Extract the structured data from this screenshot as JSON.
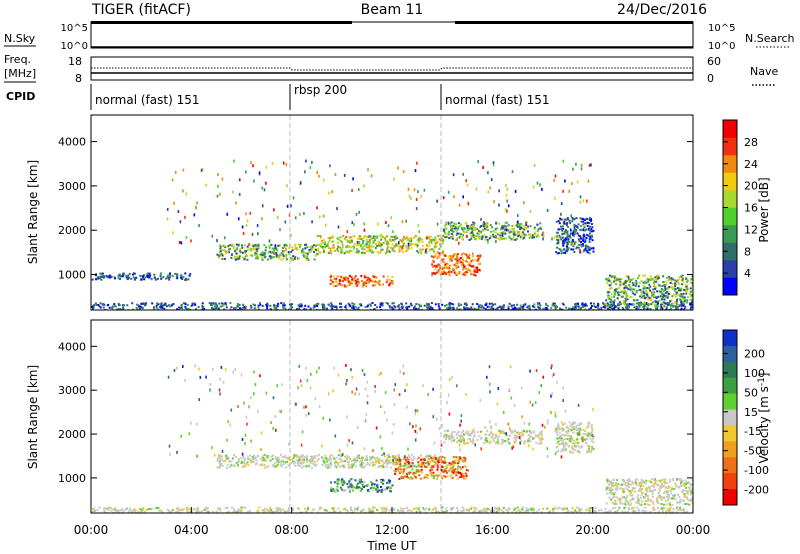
{
  "header": {
    "radar": "TIGER (fitACF)",
    "beam": "Beam 11",
    "date": "24/Dec/2016"
  },
  "status_panels": {
    "nsky_label": "N.Sky",
    "nsearch_label": "N.Search",
    "nsky_ticks": [
      "10^5",
      "10^0"
    ],
    "nsearch_ticks": [
      "10^5",
      "10^0"
    ],
    "freq_label_1": "Freq.",
    "freq_label_2": "[MHz]",
    "freq_ticks": [
      "18",
      "8"
    ],
    "nave_label": "Nave",
    "nave_ticks": [
      "60",
      "0"
    ],
    "cpid_label": "CPID",
    "cpid_segments": [
      {
        "label": "normal (fast) 151",
        "start_h": 0,
        "end_h": 8
      },
      {
        "label": "rbsp 200",
        "start_h": 8,
        "end_h": 14
      },
      {
        "label": "normal (fast) 151",
        "start_h": 14,
        "end_h": 24
      }
    ]
  },
  "chart_data": [
    {
      "type": "heatmap",
      "panel": "power",
      "ylabel": "Slant Range [km]",
      "yticks": [
        "1000",
        "2000",
        "3000",
        "4000"
      ],
      "ylim": [
        200,
        4600
      ],
      "xlim": [
        0,
        24
      ],
      "colorbar_label": "Power [dB]",
      "colorbar_ticks": [
        "4",
        "8",
        "12",
        "16",
        "20",
        "24",
        "28"
      ],
      "colorbar_colors": [
        "#0000ff",
        "#2a3fa8",
        "#2f6f66",
        "#3a9a55",
        "#4fd02c",
        "#a8d832",
        "#f0cc10",
        "#f08a10",
        "#f03010",
        "#f00000"
      ],
      "features": [
        {
          "t": [
            0,
            24
          ],
          "r": [
            200,
            380
          ],
          "level": "low"
        },
        {
          "t": [
            0,
            4
          ],
          "r": [
            900,
            1050
          ],
          "level": "low"
        },
        {
          "t": [
            5,
            9
          ],
          "r": [
            1350,
            1700
          ],
          "level": "medium"
        },
        {
          "t": [
            9,
            14
          ],
          "r": [
            1500,
            1900
          ],
          "level": "high"
        },
        {
          "t": [
            9.5,
            12
          ],
          "r": [
            750,
            1000
          ],
          "level": "very-high"
        },
        {
          "t": [
            13.5,
            15.5
          ],
          "r": [
            1000,
            1500
          ],
          "level": "very-high"
        },
        {
          "t": [
            14,
            18
          ],
          "r": [
            1800,
            2200
          ],
          "level": "medium"
        },
        {
          "t": [
            18.5,
            20
          ],
          "r": [
            1500,
            2300
          ],
          "level": "low"
        },
        {
          "t": [
            20.5,
            24
          ],
          "r": [
            300,
            1000
          ],
          "level": "medium"
        }
      ]
    },
    {
      "type": "heatmap",
      "panel": "velocity",
      "ylabel": "Slant Range [km]",
      "yticks": [
        "1000",
        "2000",
        "3000",
        "4000"
      ],
      "ylim": [
        200,
        4600
      ],
      "xlabel": "Time UT",
      "xticks": [
        "00:00",
        "04:00",
        "08:00",
        "12:00",
        "16:00",
        "20:00",
        "00:00"
      ],
      "xlim": [
        0,
        24
      ],
      "colorbar_label": "Velocity [m s",
      "colorbar_label_sup": "-1",
      "colorbar_label_end": "]",
      "colorbar_ticks": [
        "200",
        "100",
        "50",
        "15",
        "-15",
        "-50",
        "-100",
        "-200"
      ],
      "colorbar_colors": [
        "#1030c8",
        "#2a5fa0",
        "#2e7a56",
        "#3aa040",
        "#60d030",
        "#c8c8c8",
        "#f0c830",
        "#f0a020",
        "#f07018",
        "#f04010",
        "#f00000"
      ],
      "features": [
        {
          "t": [
            0,
            24
          ],
          "r": [
            200,
            350
          ],
          "level": "ground"
        },
        {
          "t": [
            5,
            14
          ],
          "r": [
            1250,
            1550
          ],
          "level": "ground"
        },
        {
          "t": [
            9.5,
            12
          ],
          "r": [
            700,
            1000
          ],
          "level": "toward"
        },
        {
          "t": [
            12,
            15
          ],
          "r": [
            1000,
            1500
          ],
          "level": "away"
        },
        {
          "t": [
            14,
            18
          ],
          "r": [
            1800,
            2100
          ],
          "level": "ground"
        },
        {
          "t": [
            18.5,
            20
          ],
          "r": [
            1600,
            2300
          ],
          "level": "ground"
        },
        {
          "t": [
            20.5,
            24
          ],
          "r": [
            400,
            1000
          ],
          "level": "ground"
        }
      ]
    }
  ]
}
